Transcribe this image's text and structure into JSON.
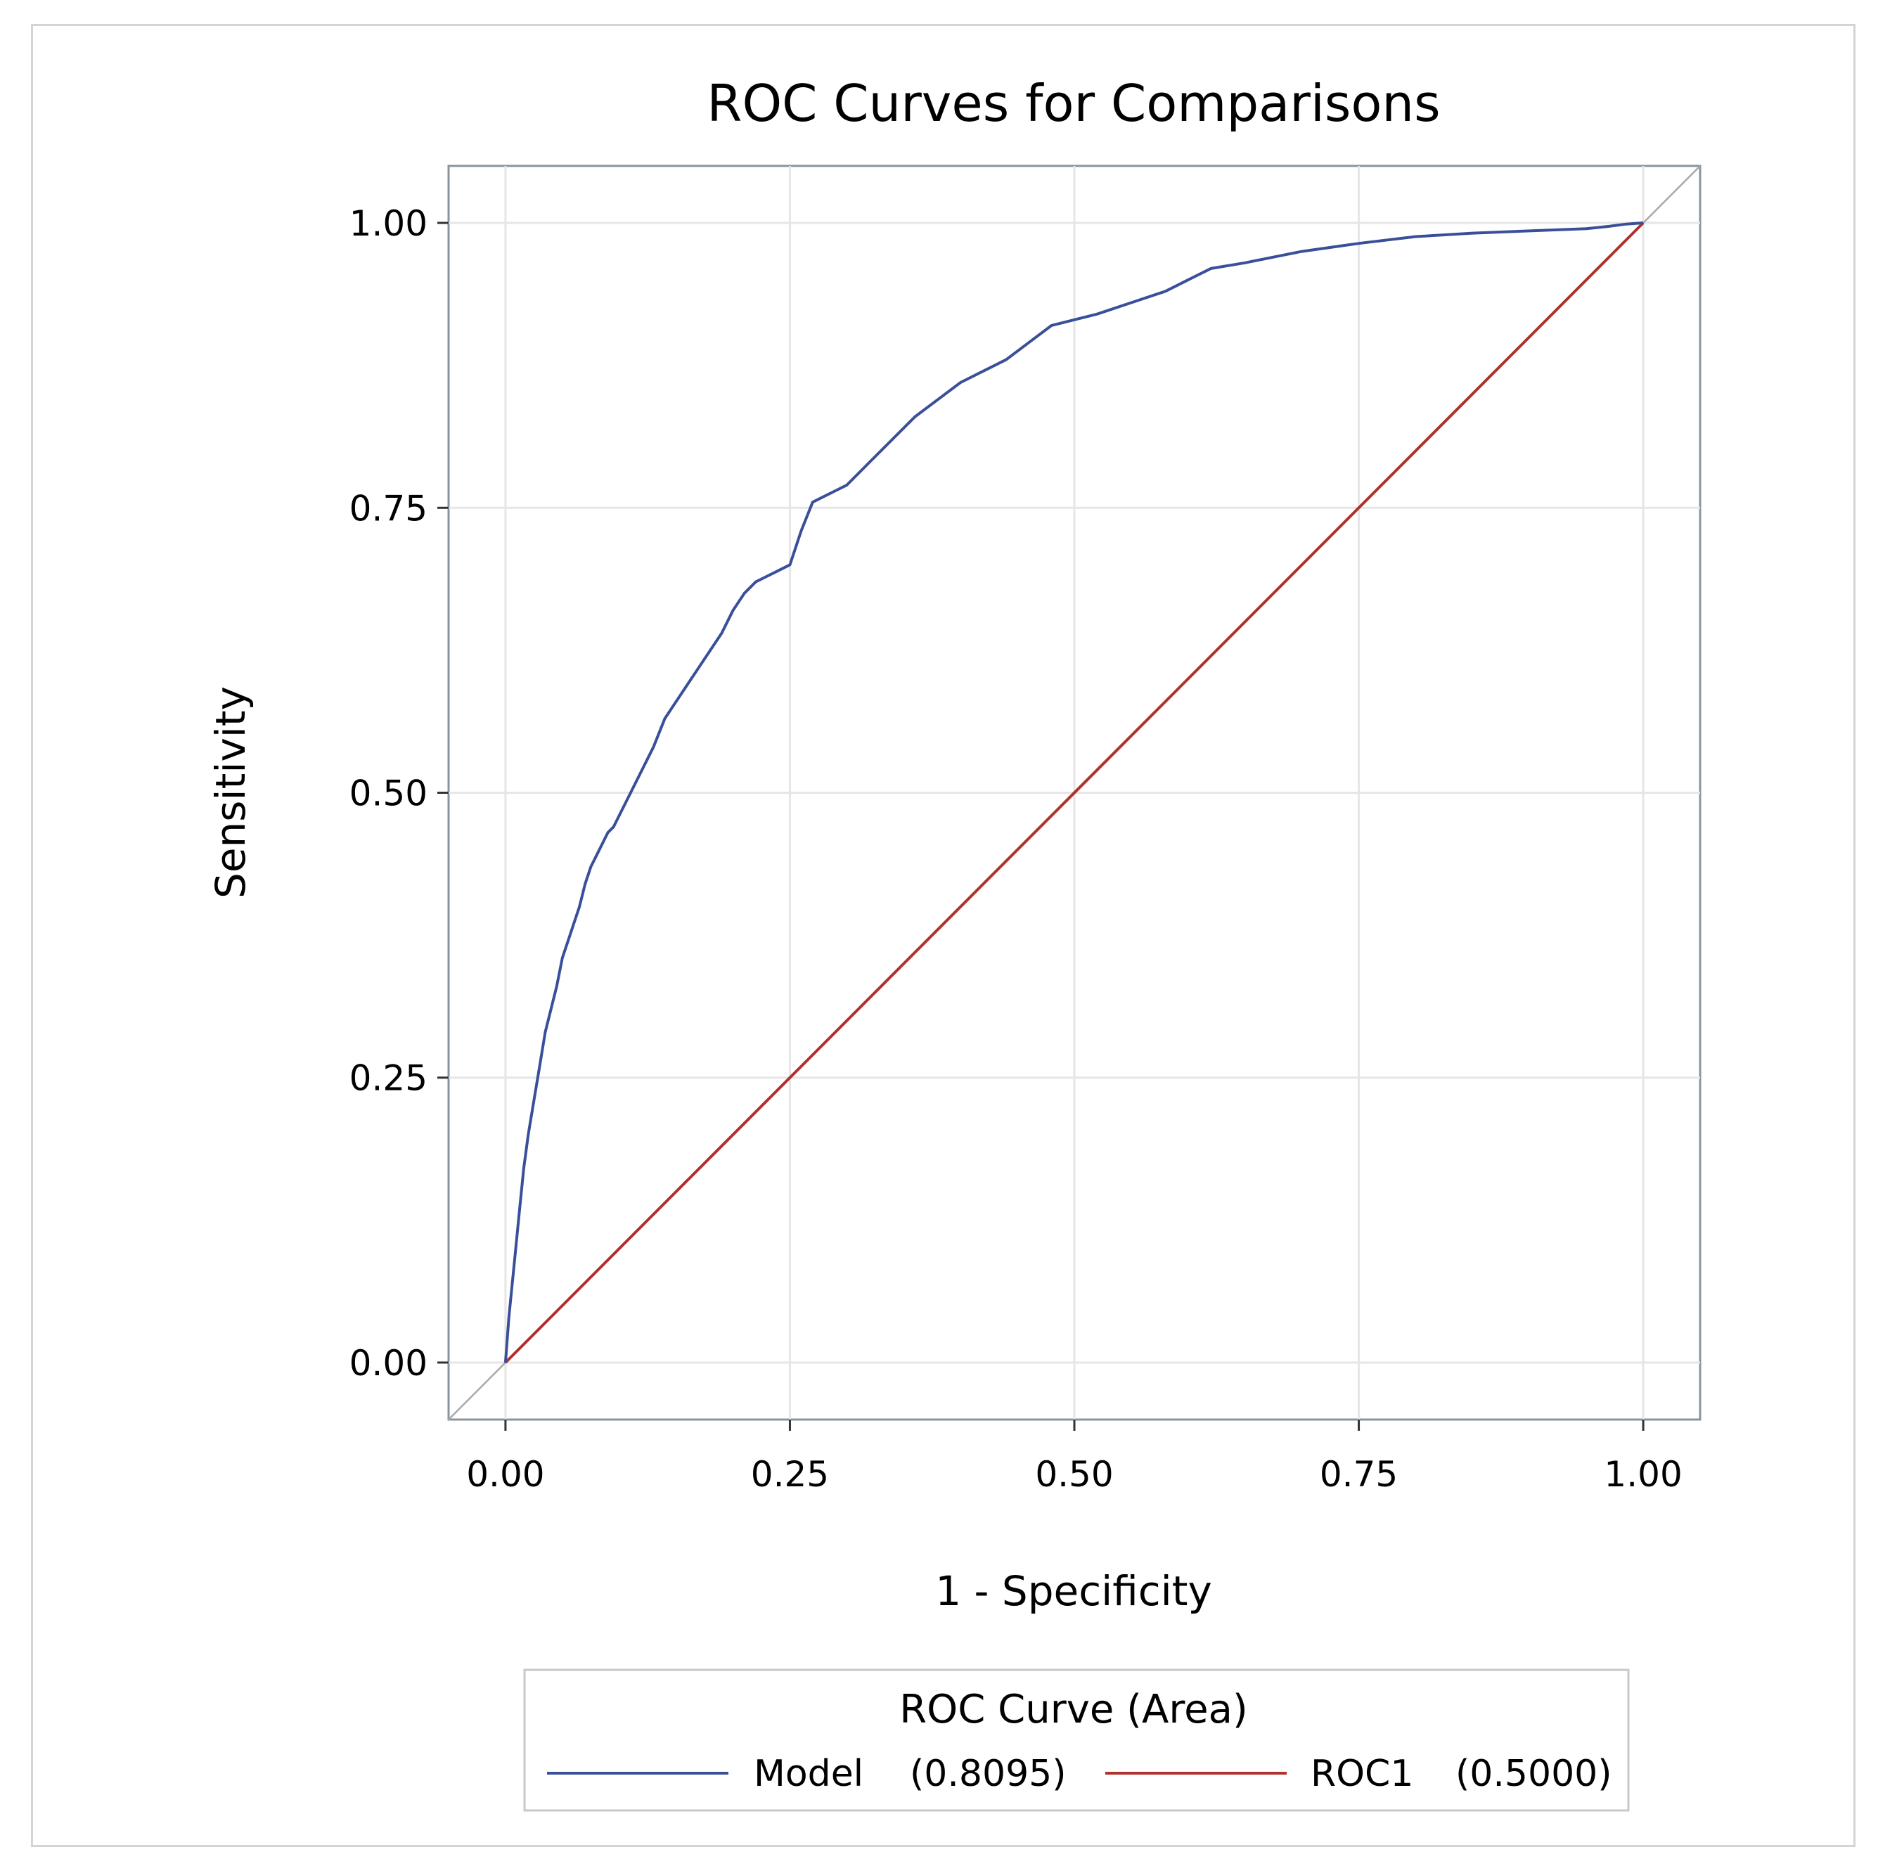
{
  "chart_data": {
    "type": "line",
    "title": "ROC Curves for Comparisons",
    "xlabel": "1 - Specificity",
    "ylabel": "Sensitivity",
    "xlim": [
      -0.05,
      1.05
    ],
    "ylim": [
      -0.05,
      1.05
    ],
    "xticks": [
      "0.00",
      "0.25",
      "0.50",
      "0.75",
      "1.00"
    ],
    "yticks": [
      "0.00",
      "0.25",
      "0.50",
      "0.75",
      "1.00"
    ],
    "tick_values": [
      0,
      0.25,
      0.5,
      0.75,
      1.0
    ],
    "grid": true,
    "reference_line": {
      "x": [
        -0.05,
        1.05
      ],
      "y": [
        -0.05,
        1.05
      ],
      "color": "#a8a8a8"
    },
    "legend": {
      "title": "ROC Curve (Area)",
      "position": "bottom",
      "entries": [
        {
          "name": "Model",
          "area": "(0.8095)",
          "color": "#3a4f9a"
        },
        {
          "name": "ROC1",
          "area": "(0.5000)",
          "color": "#b0302c"
        }
      ]
    },
    "series": [
      {
        "name": "Model",
        "color": "#3a4f9a",
        "x": [
          0,
          0.003,
          0.008,
          0.012,
          0.016,
          0.02,
          0.025,
          0.03,
          0.035,
          0.04,
          0.045,
          0.05,
          0.055,
          0.06,
          0.065,
          0.07,
          0.075,
          0.08,
          0.085,
          0.09,
          0.095,
          0.1,
          0.11,
          0.12,
          0.13,
          0.14,
          0.15,
          0.16,
          0.17,
          0.18,
          0.19,
          0.2,
          0.21,
          0.22,
          0.23,
          0.24,
          0.25,
          0.26,
          0.27,
          0.28,
          0.29,
          0.3,
          0.32,
          0.34,
          0.36,
          0.38,
          0.4,
          0.42,
          0.44,
          0.46,
          0.48,
          0.5,
          0.52,
          0.55,
          0.58,
          0.6,
          0.62,
          0.65,
          0.7,
          0.75,
          0.8,
          0.85,
          0.9,
          0.95,
          0.97,
          0.985,
          1.0
        ],
        "y": [
          0,
          0.04,
          0.09,
          0.13,
          0.17,
          0.2,
          0.23,
          0.26,
          0.29,
          0.31,
          0.33,
          0.355,
          0.37,
          0.385,
          0.4,
          0.42,
          0.435,
          0.445,
          0.455,
          0.465,
          0.47,
          0.48,
          0.5,
          0.52,
          0.54,
          0.565,
          0.58,
          0.595,
          0.61,
          0.625,
          0.64,
          0.66,
          0.675,
          0.685,
          0.69,
          0.695,
          0.7,
          0.73,
          0.755,
          0.76,
          0.765,
          0.77,
          0.79,
          0.81,
          0.83,
          0.845,
          0.86,
          0.87,
          0.88,
          0.895,
          0.91,
          0.915,
          0.92,
          0.93,
          0.94,
          0.95,
          0.96,
          0.965,
          0.975,
          0.982,
          0.988,
          0.991,
          0.993,
          0.995,
          0.997,
          0.999,
          1.0
        ]
      },
      {
        "name": "ROC1",
        "color": "#b0302c",
        "x": [
          0,
          1
        ],
        "y": [
          0,
          1
        ]
      }
    ]
  }
}
